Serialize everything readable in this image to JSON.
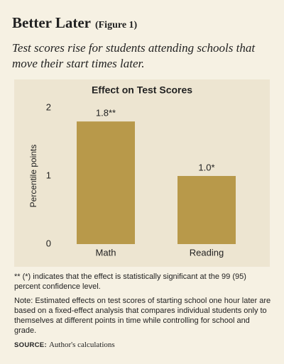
{
  "header": {
    "title": "Better Later",
    "figure": "(Figure 1)",
    "subtitle": "Test scores rise for students attending schools that move their start times later."
  },
  "chart_data": {
    "type": "bar",
    "title": "Effect on Test Scores",
    "y_label": "Percentile points",
    "categories": [
      "Math",
      "Reading"
    ],
    "values": [
      1.8,
      1.0
    ],
    "value_labels": [
      "1.8**",
      "1.0*"
    ],
    "color": "#b8994a",
    "ylim": [
      0,
      2
    ],
    "yticks": [
      0,
      1,
      2
    ],
    "grid": false
  },
  "notes": {
    "significance": "** (*) indicates that the effect is statistically significant at the 99 (95) percent confidence level.",
    "note": "Note: Estimated effects on test scores of starting school one hour later are based on a fixed-effect analysis that compares individual students only to themselves at different points in time while controlling for school and grade.",
    "source_label": "SOURCE:",
    "source": "Author's calculations"
  }
}
